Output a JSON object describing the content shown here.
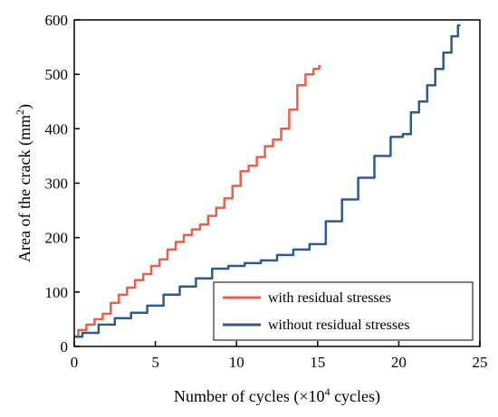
{
  "chart_data": {
    "type": "line",
    "xlabel": {
      "text": "Number of cycles (×10",
      "sup": "4",
      "after": " cycles)"
    },
    "ylabel": {
      "text": "Area of the crack (mm",
      "sup": "2",
      "after": ")"
    },
    "xlim": [
      0,
      25
    ],
    "ylim": [
      0,
      600
    ],
    "xticks": [
      0,
      5,
      10,
      15,
      20,
      25
    ],
    "yticks": [
      0,
      100,
      200,
      300,
      400,
      500,
      600
    ],
    "grid": false,
    "legend_position": "bottom-right",
    "series": [
      {
        "name": "with residual stresses",
        "color": "#e8604c",
        "x": [
          0,
          0.5,
          1.0,
          1.5,
          2.0,
          2.5,
          3.0,
          3.5,
          4.0,
          4.5,
          5.0,
          5.5,
          6.0,
          6.5,
          7.0,
          7.5,
          8.0,
          8.5,
          9.0,
          9.5,
          10.0,
          10.5,
          11.0,
          11.5,
          12.0,
          12.5,
          13.0,
          13.5,
          14.0,
          14.5,
          15.0,
          15.2
        ],
        "y": [
          18,
          30,
          40,
          50,
          60,
          80,
          95,
          108,
          122,
          133,
          148,
          160,
          178,
          192,
          205,
          215,
          224,
          240,
          255,
          272,
          295,
          322,
          332,
          348,
          368,
          380,
          400,
          435,
          480,
          500,
          510,
          515
        ]
      },
      {
        "name": "without residual stresses",
        "color": "#2e5b8a",
        "x": [
          0,
          1,
          2,
          3,
          4,
          5,
          6,
          7,
          8,
          9,
          10,
          11,
          12,
          13,
          14,
          15,
          16,
          17,
          18,
          19,
          20,
          20.5,
          21,
          21.5,
          22,
          22.5,
          23,
          23.5,
          23.8
        ],
        "y": [
          18,
          25,
          40,
          52,
          62,
          75,
          95,
          110,
          125,
          143,
          148,
          153,
          158,
          168,
          178,
          188,
          230,
          270,
          310,
          350,
          385,
          390,
          430,
          450,
          480,
          510,
          540,
          570,
          590
        ]
      }
    ]
  }
}
